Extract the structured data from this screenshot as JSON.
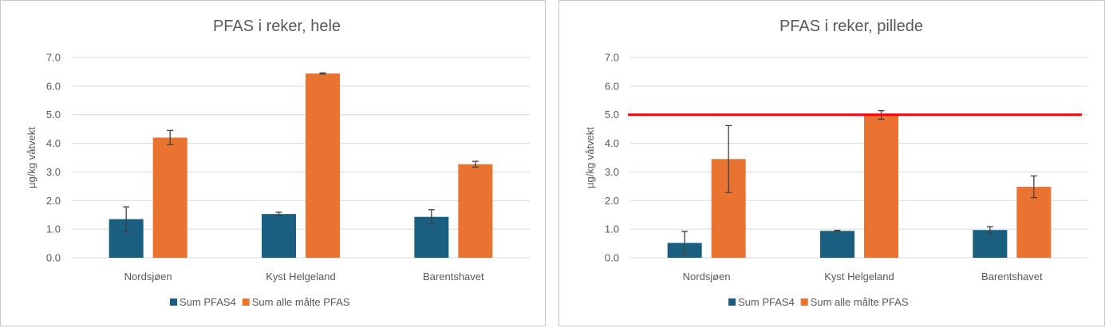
{
  "colors": {
    "series1": "#1b5f80",
    "series2": "#ea7331",
    "limit_line": "#ff0000",
    "errorbar": "#404040",
    "text": "#595959",
    "grid": "#d9d9d9"
  },
  "chart_data": [
    {
      "type": "bar",
      "title": "PFAS i reker, hele",
      "ylabel": "µg/kg våtvekt",
      "xlabel": "",
      "ylim": [
        0,
        7
      ],
      "yticks": [
        "0.0",
        "1.0",
        "2.0",
        "3.0",
        "4.0",
        "5.0",
        "6.0",
        "7.0"
      ],
      "categories": [
        "Nordsjøen",
        "Kyst Helgeland",
        "Barentshavet"
      ],
      "series": [
        {
          "name": "Sum PFAS4",
          "values": [
            1.35,
            1.53,
            1.43
          ],
          "errors": [
            0.43,
            0.06,
            0.25
          ]
        },
        {
          "name": "Sum alle målte PFAS",
          "values": [
            4.2,
            6.44,
            3.27
          ],
          "errors": [
            0.25,
            0.02,
            0.1
          ]
        }
      ],
      "legend": "bottom",
      "grid": true
    },
    {
      "type": "bar",
      "title": "PFAS i reker, pillede",
      "ylabel": "µg/kg våtvekt",
      "xlabel": "",
      "ylim": [
        0,
        7
      ],
      "yticks": [
        "0.0",
        "1.0",
        "2.0",
        "3.0",
        "4.0",
        "5.0",
        "6.0",
        "7.0"
      ],
      "categories": [
        "Nordsjøen",
        "Kyst Helgeland",
        "Barentshavet"
      ],
      "series": [
        {
          "name": "Sum PFAS4",
          "values": [
            0.52,
            0.94,
            0.97
          ],
          "errors": [
            0.4,
            0.02,
            0.12
          ]
        },
        {
          "name": "Sum alle målte PFAS",
          "values": [
            3.45,
            4.99,
            2.48
          ],
          "errors": [
            1.17,
            0.15,
            0.38
          ]
        }
      ],
      "reference_line": 5.0,
      "legend": "bottom",
      "grid": true
    }
  ]
}
